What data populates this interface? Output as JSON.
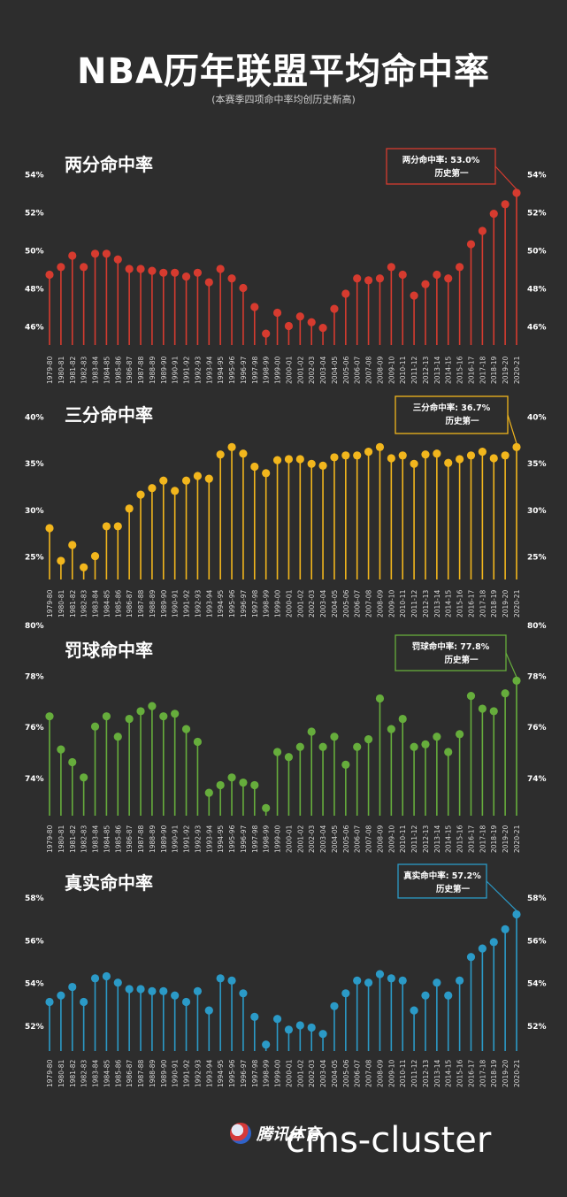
{
  "title": "NBA历年联盟平均命中率",
  "subtitle": "(本赛季四项命中率均创历史新高)",
  "brand": "腾讯体育",
  "watermark": "cms-cluster",
  "seasons": [
    "1979-80",
    "1980-81",
    "1981-82",
    "1982-83",
    "1983-84",
    "1984-85",
    "1985-86",
    "1986-87",
    "1987-88",
    "1988-89",
    "1989-90",
    "1990-91",
    "1991-92",
    "1992-93",
    "1993-94",
    "1994-95",
    "1995-96",
    "1996-97",
    "1997-98",
    "1998-99",
    "1999-00",
    "2000-01",
    "2001-02",
    "2002-03",
    "2003-04",
    "2004-05",
    "2005-06",
    "2006-07",
    "2007-08",
    "2008-09",
    "2009-10",
    "2010-11",
    "2011-12",
    "2012-13",
    "2013-14",
    "2014-15",
    "2015-16",
    "2016-17",
    "2017-18",
    "2018-19",
    "2019-20",
    "2020-21"
  ],
  "chart_data": [
    {
      "type": "lollipop",
      "title": "两分命中率",
      "color": "#d63b2f",
      "ylim": [
        45,
        55
      ],
      "yticks": [
        46,
        48,
        50,
        52,
        54
      ],
      "ytick_labels": [
        "46%",
        "48%",
        "50%",
        "52%",
        "54%"
      ],
      "values": [
        48.7,
        49.1,
        49.7,
        49.1,
        49.8,
        49.8,
        49.5,
        49.0,
        49.0,
        48.9,
        48.8,
        48.8,
        48.6,
        48.8,
        48.3,
        49.0,
        48.5,
        48.0,
        47.0,
        45.6,
        46.7,
        46.0,
        46.5,
        46.2,
        45.9,
        46.9,
        47.7,
        48.5,
        48.4,
        48.5,
        49.1,
        48.7,
        47.6,
        48.2,
        48.7,
        48.5,
        49.1,
        50.3,
        51.0,
        51.9,
        52.4,
        53.0
      ],
      "callout_line1": "两分命中率: 53.0%",
      "callout_line2": "历史第一"
    },
    {
      "type": "lollipop",
      "title": "三分命中率",
      "color": "#f2b61d",
      "ylim": [
        22.5,
        41
      ],
      "yticks": [
        25,
        30,
        35,
        40
      ],
      "ytick_labels": [
        "25%",
        "30%",
        "35%",
        "40%"
      ],
      "values": [
        28.0,
        24.5,
        26.2,
        23.8,
        25.0,
        28.2,
        28.2,
        30.1,
        31.6,
        32.3,
        33.1,
        32.0,
        33.1,
        33.6,
        33.3,
        35.9,
        36.7,
        36.0,
        34.6,
        33.9,
        35.3,
        35.4,
        35.4,
        34.9,
        34.7,
        35.6,
        35.8,
        35.8,
        36.2,
        36.7,
        35.5,
        35.8,
        34.9,
        35.9,
        36.0,
        35.0,
        35.4,
        35.8,
        36.2,
        35.5,
        35.8,
        36.7
      ],
      "callout_line1": "三分命中率: 36.7%",
      "callout_line2": "历史第一"
    },
    {
      "type": "lollipop",
      "title": "罚球命中率",
      "color": "#66ad3c",
      "ylim": [
        72.5,
        80
      ],
      "yticks": [
        74,
        76,
        78,
        80
      ],
      "ytick_labels": [
        "74%",
        "76%",
        "78%",
        "80%"
      ],
      "values": [
        76.4,
        75.1,
        74.6,
        74.0,
        76.0,
        76.4,
        75.6,
        76.3,
        76.6,
        76.8,
        76.4,
        76.5,
        75.9,
        75.4,
        73.4,
        73.7,
        74.0,
        73.8,
        73.7,
        72.8,
        75.0,
        74.8,
        75.2,
        75.8,
        75.2,
        75.6,
        74.5,
        75.2,
        75.5,
        77.1,
        75.9,
        76.3,
        75.2,
        75.3,
        75.6,
        75.0,
        75.7,
        77.2,
        76.7,
        76.6,
        77.3,
        77.8
      ],
      "callout_line1": "罚球命中率: 77.8%",
      "callout_line2": "历史第一"
    },
    {
      "type": "lollipop",
      "title": "真实命中率",
      "color": "#2b9ac7",
      "ylim": [
        50.8,
        59
      ],
      "yticks": [
        52,
        54,
        56,
        58
      ],
      "ytick_labels": [
        "52%",
        "54%",
        "56%",
        "58%"
      ],
      "values": [
        53.1,
        53.4,
        53.8,
        53.1,
        54.2,
        54.3,
        54.0,
        53.7,
        53.7,
        53.6,
        53.6,
        53.4,
        53.1,
        53.6,
        52.7,
        54.2,
        54.1,
        53.5,
        52.4,
        51.1,
        52.3,
        51.8,
        52.0,
        51.9,
        51.6,
        52.9,
        53.5,
        54.1,
        54.0,
        54.4,
        54.2,
        54.1,
        52.7,
        53.4,
        54.0,
        53.4,
        54.1,
        55.2,
        55.6,
        55.9,
        56.5,
        57.2
      ],
      "callout_line1": "真实命中率: 57.2%",
      "callout_line2": "历史第一"
    }
  ]
}
